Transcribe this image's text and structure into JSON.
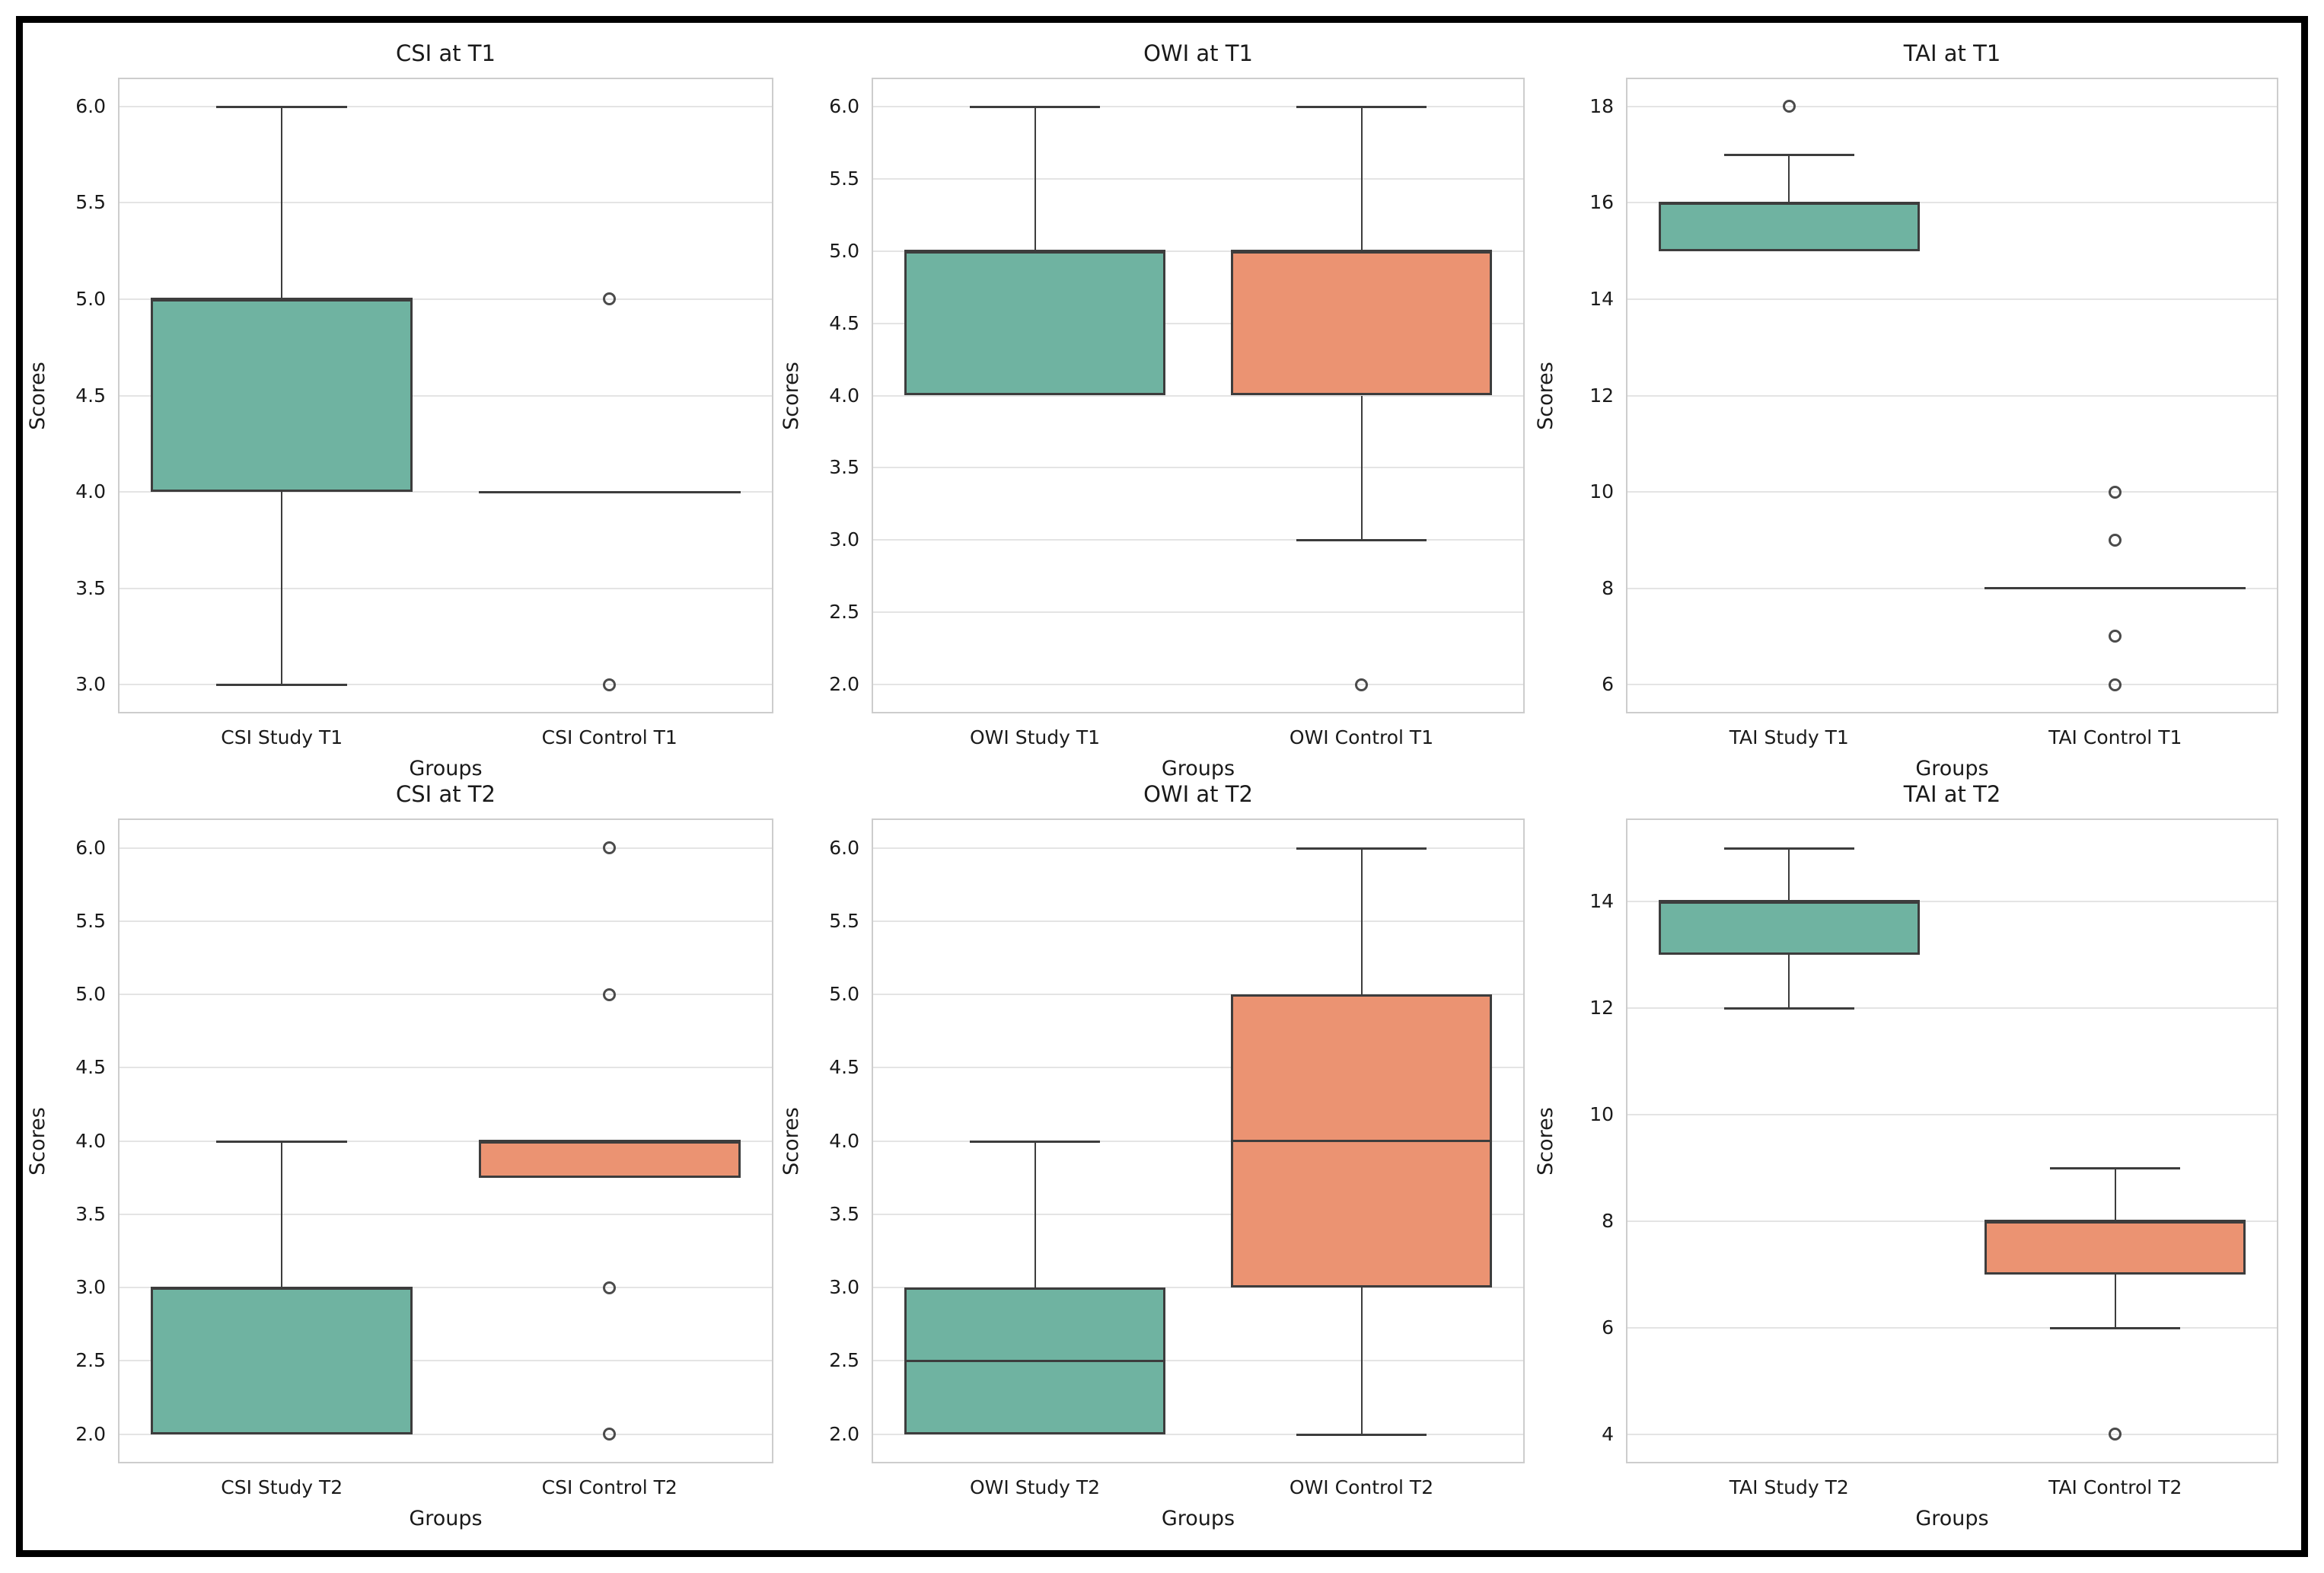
{
  "figure": {
    "background": "#ffffff",
    "border_color": "#000000"
  },
  "colors": {
    "study_fill": "#6fb3a1",
    "control_fill": "#eb9372",
    "line": "#3d3d3d",
    "grid": "#e4e4e4",
    "spine": "#cdcdcd",
    "text": "#1a1a1a"
  },
  "chart_data": [
    {
      "type": "box",
      "title": "CSI at T1",
      "xlabel": "Groups",
      "ylabel": "Scores",
      "ylim": [
        2.85,
        6.15
      ],
      "grid": true,
      "yticks": [
        {
          "v": 6.0,
          "label": "6.0"
        },
        {
          "v": 5.5,
          "label": "5.5"
        },
        {
          "v": 5.0,
          "label": "5.0"
        },
        {
          "v": 4.5,
          "label": "4.5"
        },
        {
          "v": 4.0,
          "label": "4.0"
        },
        {
          "v": 3.5,
          "label": "3.5"
        },
        {
          "v": 3.0,
          "label": "3.0"
        }
      ],
      "groups": [
        {
          "label": "CSI Study T1",
          "series": "study",
          "whislo": 3,
          "q1": 4,
          "med": 5,
          "q3": 5,
          "whishi": 6,
          "fliers": []
        },
        {
          "label": "CSI Control T1",
          "series": "control",
          "whislo": 4,
          "q1": 4,
          "med": 4,
          "q3": 4,
          "whishi": 4,
          "fliers": [
            5,
            3
          ]
        }
      ]
    },
    {
      "type": "box",
      "title": "OWI at T1",
      "xlabel": "Groups",
      "ylabel": "Scores",
      "ylim": [
        1.8,
        6.2
      ],
      "grid": true,
      "yticks": [
        {
          "v": 6.0,
          "label": "6.0"
        },
        {
          "v": 5.5,
          "label": "5.5"
        },
        {
          "v": 5.0,
          "label": "5.0"
        },
        {
          "v": 4.5,
          "label": "4.5"
        },
        {
          "v": 4.0,
          "label": "4.0"
        },
        {
          "v": 3.5,
          "label": "3.5"
        },
        {
          "v": 3.0,
          "label": "3.0"
        },
        {
          "v": 2.5,
          "label": "2.5"
        },
        {
          "v": 2.0,
          "label": "2.0"
        }
      ],
      "groups": [
        {
          "label": "OWI Study T1",
          "series": "study",
          "whislo": 4,
          "q1": 4,
          "med": 5,
          "q3": 5,
          "whishi": 6,
          "fliers": []
        },
        {
          "label": "OWI Control T1",
          "series": "control",
          "whislo": 3,
          "q1": 4,
          "med": 5,
          "q3": 5,
          "whishi": 6,
          "fliers": [
            2
          ]
        }
      ]
    },
    {
      "type": "box",
      "title": "TAI at T1",
      "xlabel": "Groups",
      "ylabel": "Scores",
      "ylim": [
        5.4,
        18.6
      ],
      "grid": true,
      "yticks": [
        {
          "v": 18,
          "label": "18"
        },
        {
          "v": 16,
          "label": "16"
        },
        {
          "v": 14,
          "label": "14"
        },
        {
          "v": 12,
          "label": "12"
        },
        {
          "v": 10,
          "label": "10"
        },
        {
          "v": 8,
          "label": "8"
        },
        {
          "v": 6,
          "label": "6"
        }
      ],
      "groups": [
        {
          "label": "TAI Study T1",
          "series": "study",
          "whislo": 15,
          "q1": 15,
          "med": 16,
          "q3": 16,
          "whishi": 17,
          "fliers": [
            18
          ]
        },
        {
          "label": "TAI Control T1",
          "series": "control",
          "whislo": 8,
          "q1": 8,
          "med": 8,
          "q3": 8,
          "whishi": 8,
          "fliers": [
            10,
            9,
            7,
            6
          ]
        }
      ]
    },
    {
      "type": "box",
      "title": "CSI at T2",
      "xlabel": "Groups",
      "ylabel": "Scores",
      "ylim": [
        1.8,
        6.2
      ],
      "grid": true,
      "yticks": [
        {
          "v": 6.0,
          "label": "6.0"
        },
        {
          "v": 5.5,
          "label": "5.5"
        },
        {
          "v": 5.0,
          "label": "5.0"
        },
        {
          "v": 4.5,
          "label": "4.5"
        },
        {
          "v": 4.0,
          "label": "4.0"
        },
        {
          "v": 3.5,
          "label": "3.5"
        },
        {
          "v": 3.0,
          "label": "3.0"
        },
        {
          "v": 2.5,
          "label": "2.5"
        },
        {
          "v": 2.0,
          "label": "2.0"
        }
      ],
      "groups": [
        {
          "label": "CSI Study T2",
          "series": "study",
          "whislo": 2,
          "q1": 2,
          "med": 3,
          "q3": 3,
          "whishi": 4,
          "fliers": []
        },
        {
          "label": "CSI Control T2",
          "series": "control",
          "whislo": 3.75,
          "q1": 3.75,
          "med": 4,
          "q3": 4,
          "whishi": 4,
          "fliers": [
            6,
            5,
            3,
            2
          ]
        }
      ]
    },
    {
      "type": "box",
      "title": "OWI at T2",
      "xlabel": "Groups",
      "ylabel": "Scores",
      "ylim": [
        1.8,
        6.2
      ],
      "grid": true,
      "yticks": [
        {
          "v": 6.0,
          "label": "6.0"
        },
        {
          "v": 5.5,
          "label": "5.5"
        },
        {
          "v": 5.0,
          "label": "5.0"
        },
        {
          "v": 4.5,
          "label": "4.5"
        },
        {
          "v": 4.0,
          "label": "4.0"
        },
        {
          "v": 3.5,
          "label": "3.5"
        },
        {
          "v": 3.0,
          "label": "3.0"
        },
        {
          "v": 2.5,
          "label": "2.5"
        },
        {
          "v": 2.0,
          "label": "2.0"
        }
      ],
      "groups": [
        {
          "label": "OWI Study T2",
          "series": "study",
          "whislo": 2,
          "q1": 2,
          "med": 2.5,
          "q3": 3,
          "whishi": 4,
          "fliers": []
        },
        {
          "label": "OWI Control T2",
          "series": "control",
          "whislo": 2,
          "q1": 3,
          "med": 4,
          "q3": 5,
          "whishi": 6,
          "fliers": []
        }
      ]
    },
    {
      "type": "box",
      "title": "TAI at T2",
      "xlabel": "Groups",
      "ylabel": "Scores",
      "ylim": [
        3.45,
        15.55
      ],
      "grid": true,
      "yticks": [
        {
          "v": 14,
          "label": "14"
        },
        {
          "v": 12,
          "label": "12"
        },
        {
          "v": 10,
          "label": "10"
        },
        {
          "v": 8,
          "label": "8"
        },
        {
          "v": 6,
          "label": "6"
        },
        {
          "v": 4,
          "label": "4"
        }
      ],
      "groups": [
        {
          "label": "TAI Study T2",
          "series": "study",
          "whislo": 12,
          "q1": 13,
          "med": 14,
          "q3": 14,
          "whishi": 15,
          "fliers": []
        },
        {
          "label": "TAI Control T2",
          "series": "control",
          "whislo": 6,
          "q1": 7,
          "med": 8,
          "q3": 8,
          "whishi": 9,
          "fliers": [
            4
          ]
        }
      ]
    }
  ]
}
